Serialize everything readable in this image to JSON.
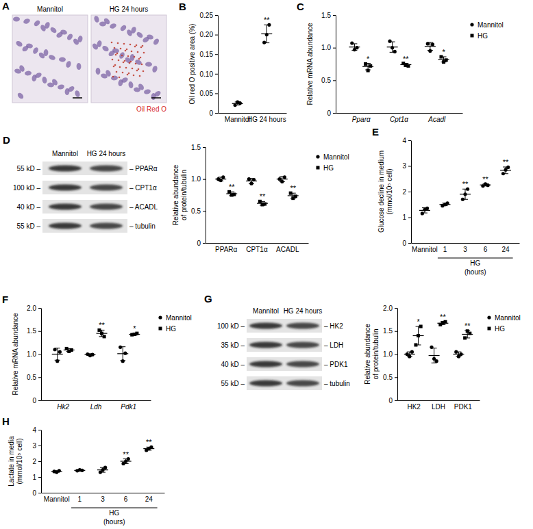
{
  "chart_data": [
    {
      "type": "dot",
      "panel_label": "B",
      "ylabel": [
        "Oil red O positive area (%)"
      ],
      "categories": [
        "Mannitol",
        "HG 24 hours"
      ],
      "ylim": [
        0,
        0.25
      ],
      "yticks": [
        0,
        0.05,
        {
          "value": 0.1,
          "label": "0.10"
        },
        0.15,
        {
          "value": 0.2,
          "label": "0.20"
        },
        0.25
      ],
      "series": [
        {
          "color": "#000000",
          "marker": "circle",
          "values": [
            [
              0.02,
              0.028,
              0.025
            ],
            [
              0.18,
              0.2,
              0.225
            ]
          ],
          "means": [
            0.024,
            0.202
          ],
          "sd": [
            0.004,
            0.023
          ],
          "significance": [
            null,
            "**"
          ]
        }
      ]
    },
    {
      "type": "dot",
      "panel_label": "C",
      "ylabel": [
        "Relative mRNA abundance"
      ],
      "categories": [
        "Pparα",
        "Cpt1α",
        "Acadl"
      ],
      "ylim": [
        0,
        1.5
      ],
      "yticks": [
        0,
        0.5,
        {
          "value": 1,
          "label": "1.0"
        },
        1.5
      ],
      "legend": "right",
      "series": [
        {
          "name": "Mannitol",
          "color": "#000000",
          "marker": "circle",
          "values": [
            [
              1.07,
              0.97,
              1.0
            ],
            [
              1.1,
              1.0,
              0.94
            ],
            [
              1.06,
              0.95,
              1.05
            ]
          ],
          "means": [
            1.01,
            1.01,
            1.02
          ],
          "sd": [
            0.05,
            0.08,
            0.06
          ],
          "significance": [
            null,
            null,
            null
          ]
        },
        {
          "name": "HG",
          "color": "#000000",
          "marker": "square",
          "values": [
            [
              0.75,
              0.65,
              0.72
            ],
            [
              0.76,
              0.73,
              0.72
            ],
            [
              0.86,
              0.78,
              0.81
            ]
          ],
          "means": [
            0.71,
            0.74,
            0.82
          ],
          "sd": [
            0.05,
            0.02,
            0.04
          ],
          "significance": [
            "*",
            "**",
            "*"
          ]
        }
      ]
    },
    {
      "type": "dot",
      "ylabel": [
        "Relative abundance",
        "of protein/tubulin"
      ],
      "categories": [
        "PPARα",
        "CPT1α",
        "ACADL"
      ],
      "ylim": [
        0,
        1.5
      ],
      "yticks": [
        0,
        0.5,
        {
          "value": 1,
          "label": "1.0"
        },
        1.5
      ],
      "legend": "right",
      "series": [
        {
          "name": "Mannitol",
          "color": "#000000",
          "marker": "circle",
          "values": [
            [
              1.0,
              0.98,
              1.03
            ],
            [
              1.0,
              0.93,
              0.99
            ],
            [
              1.0,
              0.96,
              1.03
            ]
          ],
          "means": [
            1.0,
            0.97,
            1.0
          ],
          "sd": [
            0.03,
            0.04,
            0.04
          ],
          "significance": [
            null,
            null,
            null
          ]
        },
        {
          "name": "HG",
          "color": "#000000",
          "marker": "square",
          "values": [
            [
              0.8,
              0.75,
              0.76
            ],
            [
              0.65,
              0.6,
              0.61
            ],
            [
              0.78,
              0.7,
              0.73
            ]
          ],
          "means": [
            0.77,
            0.62,
            0.74
          ],
          "sd": [
            0.03,
            0.03,
            0.04
          ],
          "significance": [
            "**",
            "**",
            "**"
          ]
        }
      ]
    },
    {
      "type": "dot",
      "panel_label": "E",
      "ylabel": [
        "Glucose decline in medium",
        "(mmol/10⁵ cell)"
      ],
      "categories": [
        "Mannitol",
        "1",
        "3",
        "6",
        "24"
      ],
      "x_group": {
        "label": "HG",
        "categories": [
          "1",
          "3",
          "6",
          "24"
        ]
      },
      "xlabel": "(hours)",
      "ylim": [
        0,
        4
      ],
      "yticks": [
        0,
        1,
        2,
        3,
        4
      ],
      "series": [
        {
          "color": "#000000",
          "marker": "circle",
          "values": [
            [
              1.15,
              1.3,
              1.35
            ],
            [
              1.45,
              1.5,
              1.55
            ],
            [
              1.7,
              1.9,
              2.1
            ],
            [
              2.22,
              2.3,
              2.25
            ],
            [
              2.7,
              2.85,
              2.95
            ]
          ],
          "means": [
            1.27,
            1.5,
            1.9,
            2.26,
            2.83
          ],
          "sd": [
            0.1,
            0.05,
            0.2,
            0.04,
            0.13
          ],
          "significance": [
            null,
            null,
            "**",
            "**",
            "**"
          ]
        }
      ]
    },
    {
      "type": "dot",
      "panel_label": "F",
      "ylabel": [
        "Relative mRNA abundance"
      ],
      "categories": [
        "Hk2",
        "Ldh",
        "Pdk1"
      ],
      "ylim": [
        0,
        2
      ],
      "yticks": [
        0,
        0.5,
        {
          "value": 1,
          "label": "1.0"
        },
        1.5,
        {
          "value": 2,
          "label": "2.0"
        }
      ],
      "legend": "right",
      "series": [
        {
          "name": "Mannitol",
          "color": "#000000",
          "marker": "circle",
          "values": [
            [
              1.1,
              0.85,
              1.05
            ],
            [
              1.0,
              0.97,
              0.99
            ],
            [
              1.15,
              0.85,
              1.02
            ]
          ],
          "means": [
            1.0,
            0.99,
            1.01
          ],
          "sd": [
            0.13,
            0.02,
            0.15
          ],
          "significance": [
            null,
            null,
            null
          ]
        },
        {
          "name": "HG",
          "color": "#000000",
          "marker": "square",
          "values": [
            [
              1.12,
              1.06,
              1.09
            ],
            [
              1.52,
              1.45,
              1.38
            ],
            [
              1.42,
              1.43,
              1.45
            ]
          ],
          "means": [
            1.09,
            1.45,
            1.43
          ],
          "sd": [
            0.03,
            0.07,
            0.02
          ],
          "significance": [
            null,
            "**",
            "*"
          ]
        }
      ]
    },
    {
      "type": "dot",
      "ylabel": [
        "Relative abundance",
        "of protein/tubulin"
      ],
      "categories": [
        "HK2",
        "LDH",
        "PDK1"
      ],
      "ylim": [
        0,
        2
      ],
      "yticks": [
        0,
        0.5,
        {
          "value": 1,
          "label": "1.0"
        },
        1.5,
        {
          "value": 2,
          "label": "2.0"
        }
      ],
      "legend": "right",
      "series": [
        {
          "name": "Mannitol",
          "color": "#000000",
          "marker": "circle",
          "values": [
            [
              1.0,
              0.95,
              1.05
            ],
            [
              1.15,
              0.9,
              0.85
            ],
            [
              1.05,
              0.95,
              1.0
            ]
          ],
          "means": [
            1.0,
            0.97,
            1.0
          ],
          "sd": [
            0.05,
            0.16,
            0.05
          ],
          "significance": [
            null,
            null,
            null
          ]
        },
        {
          "name": "HG",
          "color": "#000000",
          "marker": "square",
          "values": [
            [
              1.2,
              1.4,
              1.6
            ],
            [
              1.64,
              1.68,
              1.7
            ],
            [
              1.35,
              1.5,
              1.45
            ]
          ],
          "means": [
            1.4,
            1.67,
            1.43
          ],
          "sd": [
            0.2,
            0.03,
            0.08
          ],
          "significance": [
            "*",
            "**",
            "**"
          ]
        }
      ]
    },
    {
      "type": "dot",
      "panel_label": "H",
      "ylabel": [
        "Lactate in media",
        "(mmol/10⁵ cell)"
      ],
      "categories": [
        "Mannitol",
        "1",
        "3",
        "6",
        "24"
      ],
      "x_group": {
        "label": "HG",
        "categories": [
          "1",
          "3",
          "6",
          "24"
        ]
      },
      "xlabel": "(hours)",
      "ylim": [
        0,
        4
      ],
      "yticks": [
        0,
        1,
        2,
        3,
        4
      ],
      "series": [
        {
          "color": "#000000",
          "marker": "circle",
          "values": [
            [
              1.35,
              1.3,
              1.4
            ],
            [
              1.4,
              1.45,
              1.42
            ],
            [
              1.3,
              1.45,
              1.6
            ],
            [
              1.85,
              2.0,
              2.15
            ],
            [
              2.7,
              2.8,
              2.9
            ]
          ],
          "means": [
            1.35,
            1.42,
            1.45,
            2.0,
            2.8
          ],
          "sd": [
            0.05,
            0.03,
            0.15,
            0.15,
            0.1
          ],
          "significance": [
            null,
            null,
            null,
            "**",
            "**"
          ]
        }
      ]
    }
  ],
  "figure": {
    "A": {
      "panel_label": "A",
      "images": [
        "Mannitol",
        "HG 24 hours"
      ],
      "stain": "Oil Red O"
    },
    "D": {
      "panel_label": "D",
      "lanes": [
        "Mannitol",
        "HG 24 hours"
      ],
      "rows": [
        {
          "size": "55 kD –",
          "protein": "– PPARα"
        },
        {
          "size": "100 kD –",
          "protein": "– CPT1α"
        },
        {
          "size": "40 kD –",
          "protein": "– ACADL"
        },
        {
          "size": "55 kD –",
          "protein": "– tubulin"
        }
      ]
    },
    "G": {
      "panel_label": "G",
      "lanes": [
        "Mannitol",
        "HG 24 hours"
      ],
      "rows": [
        {
          "size": "100 kD –",
          "protein": "– HK2"
        },
        {
          "size": "35 kD –",
          "protein": "– LDH"
        },
        {
          "size": "40 kD –",
          "protein": "– PDK1"
        },
        {
          "size": "55 kD –",
          "protein": "– tubulin"
        }
      ]
    }
  }
}
